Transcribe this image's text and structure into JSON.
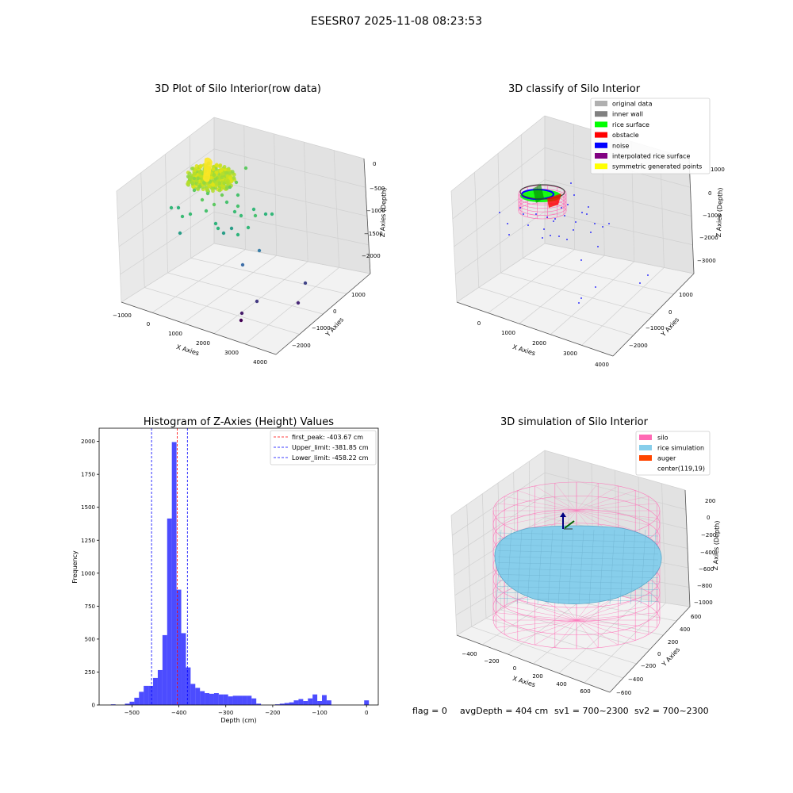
{
  "suptitle": "ESESR07 2025-11-08 08:23:53",
  "panels": {
    "raw": {
      "title": "3D Plot of Silo Interior(row data)",
      "xlabel": "X Axies",
      "ylabel": "Y Axies",
      "zlabel": "Z Axies (Depth)",
      "xticks": [
        "−1000",
        "0",
        "1000",
        "2000",
        "3000",
        "4000"
      ],
      "yticks": [
        "1000",
        "0",
        "−1000",
        "−2000"
      ],
      "zticks": [
        "0",
        "−500",
        "−1000",
        "−1500",
        "−2000"
      ]
    },
    "classify": {
      "title": "3D classify of Silo Interior",
      "xlabel": "X Axies",
      "ylabel": "Y Axies",
      "zlabel": "Z Axies (Depth)",
      "xticks": [
        "0",
        "1000",
        "2000",
        "3000",
        "4000"
      ],
      "yticks": [
        "1000",
        "0",
        "−1000",
        "−2000"
      ],
      "zticks": [
        "1000",
        "0",
        "−1000",
        "−2000",
        "−3000"
      ],
      "legend": [
        {
          "label": "original data",
          "color": "#b0b0b0"
        },
        {
          "label": "inner wall",
          "color": "#808080"
        },
        {
          "label": "rice surface",
          "color": "#00ff00"
        },
        {
          "label": "obstacle",
          "color": "#ff0000"
        },
        {
          "label": "noise",
          "color": "#0000ff"
        },
        {
          "label": "interpolated rice surface",
          "color": "#800080"
        },
        {
          "label": "symmetric generated points",
          "color": "#ffff00"
        }
      ]
    },
    "simulation": {
      "title": "3D simulation of Silo Interior",
      "xlabel": "X Axies",
      "ylabel": "Y Axies",
      "zlabel": "Z Axies (Depth)",
      "xticks": [
        "−400",
        "−200",
        "0",
        "200",
        "400",
        "600"
      ],
      "yticks": [
        "600",
        "400",
        "200",
        "0",
        "−200",
        "−400",
        "−600"
      ],
      "zticks": [
        "200",
        "0",
        "−200",
        "−400",
        "−600",
        "−800",
        "−1000"
      ],
      "legend": [
        {
          "label": "silo",
          "color": "#ff69b4"
        },
        {
          "label": "rice simulation",
          "color": "#87ceeb"
        },
        {
          "label": "auger",
          "color": "#ff4500"
        },
        {
          "label": "center(119,19)",
          "color": ""
        }
      ],
      "status": {
        "flag": "flag = 0",
        "avg": "avgDepth = 404 cm",
        "sv1": "sv1 = 700~2300",
        "sv2": "sv2 = 700~2300"
      }
    }
  },
  "chart_data": [
    {
      "type": "bar",
      "title": "Histogram of Z-Axies (Height) Values",
      "xlabel": "Depth (cm)",
      "ylabel": "Frequency",
      "xlim": [
        -570,
        25
      ],
      "ylim": [
        0,
        2100
      ],
      "xticks": [
        -500,
        -400,
        -300,
        -200,
        -100,
        0
      ],
      "yticks": [
        0,
        250,
        500,
        750,
        1000,
        1250,
        1500,
        1750,
        2000
      ],
      "bin_width": 10,
      "bin_starts": [
        -545,
        -535,
        -525,
        -515,
        -505,
        -495,
        -485,
        -475,
        -465,
        -455,
        -445,
        -435,
        -425,
        -415,
        -405,
        -395,
        -385,
        -375,
        -365,
        -355,
        -345,
        -335,
        -325,
        -315,
        -305,
        -295,
        -285,
        -275,
        -265,
        -255,
        -245,
        -235,
        -225,
        -215,
        -205,
        -195,
        -185,
        -175,
        -165,
        -155,
        -145,
        -135,
        -125,
        -115,
        -105,
        -95,
        -85,
        -75,
        -65,
        -55,
        -45,
        -35,
        -25,
        -15,
        -5
      ],
      "values": [
        5,
        0,
        0,
        10,
        25,
        55,
        100,
        145,
        145,
        205,
        265,
        530,
        1415,
        1995,
        875,
        545,
        285,
        160,
        130,
        105,
        90,
        85,
        90,
        80,
        80,
        65,
        70,
        70,
        70,
        70,
        50,
        10,
        0,
        0,
        0,
        5,
        10,
        15,
        20,
        35,
        45,
        30,
        50,
        80,
        30,
        75,
        35,
        0,
        0,
        0,
        0,
        0,
        0,
        0,
        35
      ],
      "color": "#0000ff",
      "vlines": [
        {
          "label": "first_peak: -403.67 cm",
          "x": -403.67,
          "color": "#ff0000"
        },
        {
          "label": "Upper_limit: -381.85 cm",
          "x": -381.85,
          "color": "#0000ff"
        },
        {
          "label": "Lower_limit: -458.22 cm",
          "x": -458.22,
          "color": "#0000ff"
        }
      ]
    }
  ]
}
